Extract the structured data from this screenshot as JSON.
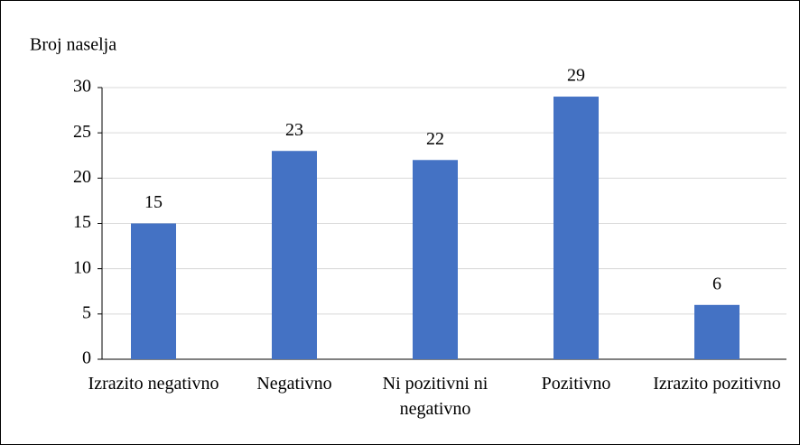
{
  "chart_data": {
    "type": "bar",
    "y_label": "Broj naselja",
    "categories": [
      "Izrazito negativno",
      "Negativno",
      "Ni pozitivni ni negativno",
      "Pozitivno",
      "Izrazito pozitivno"
    ],
    "values": [
      15,
      23,
      22,
      29,
      6
    ],
    "color": "#4472c4",
    "ylim": [
      0,
      30
    ],
    "yticks": [
      0,
      5,
      10,
      15,
      20,
      25,
      30
    ],
    "grid": true
  }
}
